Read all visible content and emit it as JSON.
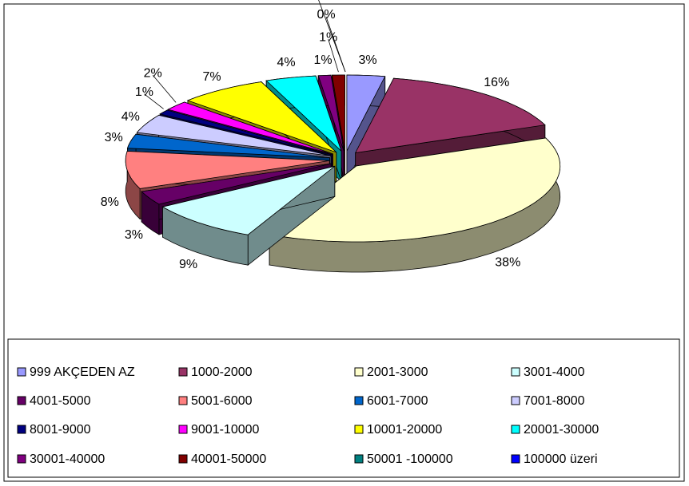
{
  "chart_data": {
    "type": "pie",
    "categories": [
      "999 AKÇEDEN AZ",
      "1000-2000",
      "2001-3000",
      "3001-4000",
      "4001-5000",
      "5001-6000",
      "6001-7000",
      "7001-8000",
      "8001-9000",
      "9001-10000",
      "10001-20000",
      "20001-30000",
      "30001-40000",
      "40001-50000",
      "50001 -100000",
      "100000 üzeri"
    ],
    "values": [
      3,
      16,
      38,
      9,
      3,
      8,
      3,
      4,
      1,
      2,
      7,
      4,
      1,
      1,
      0,
      0
    ],
    "value_labels": [
      "3%",
      "16%",
      "38%",
      "9%",
      "3%",
      "8%",
      "3%",
      "4%",
      "1%",
      "2%",
      "7%",
      "4%",
      "1%",
      "1%",
      "0%",
      "0%"
    ],
    "colors": [
      "#9999FF",
      "#993366",
      "#FFFFCC",
      "#CCFFFF",
      "#660066",
      "#FF8080",
      "#0066CC",
      "#CCCCFF",
      "#000080",
      "#FF00FF",
      "#FFFF00",
      "#00FFFF",
      "#800080",
      "#800000",
      "#008080",
      "#0000FF"
    ],
    "legend": "bottom"
  }
}
